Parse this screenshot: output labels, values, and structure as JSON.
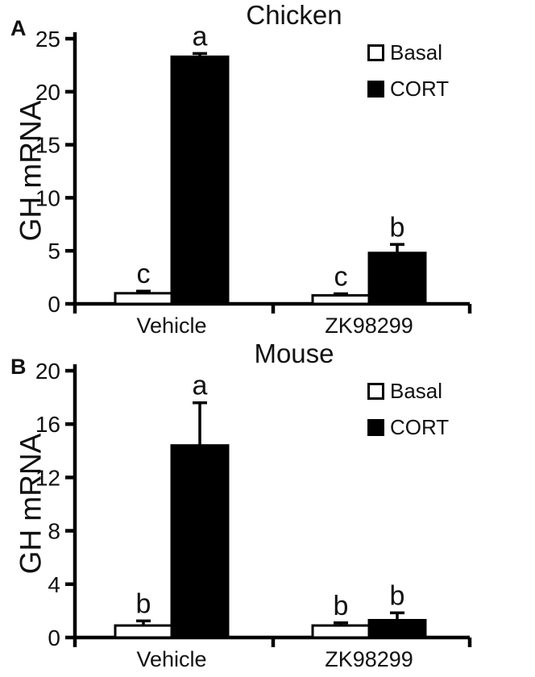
{
  "colors": {
    "foreground": "#000000",
    "background": "#ffffff",
    "basal_fill": "#ffffff",
    "cort_fill": "#000000"
  },
  "chart_data": [
    {
      "type": "bar",
      "panel_label": "A",
      "title": "Chicken",
      "ylabel": "GH mRNA",
      "xlabel": "",
      "categories": [
        "Vehicle",
        "ZK98299"
      ],
      "series": [
        {
          "name": "Basal",
          "fill": "#ffffff",
          "values": [
            1.0,
            0.8
          ],
          "errors": [
            0.2,
            0.15
          ],
          "sig_letters": [
            "c",
            "c"
          ]
        },
        {
          "name": "CORT",
          "fill": "#000000",
          "values": [
            23.3,
            4.8
          ],
          "errors": [
            0.3,
            0.8
          ],
          "sig_letters": [
            "a",
            "b"
          ]
        }
      ],
      "ylim": [
        0,
        25
      ],
      "yticks": [
        0,
        5,
        10,
        15,
        20,
        25
      ],
      "grid": false,
      "legend_position": "top-right",
      "error_bars": "upper"
    },
    {
      "type": "bar",
      "panel_label": "B",
      "title": "Mouse",
      "ylabel": "GH mRNA",
      "xlabel": "",
      "categories": [
        "Vehicle",
        "ZK98299"
      ],
      "series": [
        {
          "name": "Basal",
          "fill": "#ffffff",
          "values": [
            0.9,
            0.9
          ],
          "errors": [
            0.35,
            0.2
          ],
          "sig_letters": [
            "b",
            "b"
          ]
        },
        {
          "name": "CORT",
          "fill": "#000000",
          "values": [
            14.4,
            1.3
          ],
          "errors": [
            3.2,
            0.55
          ],
          "sig_letters": [
            "a",
            "b"
          ]
        }
      ],
      "ylim": [
        0,
        20
      ],
      "yticks": [
        0,
        4,
        8,
        12,
        16,
        20
      ],
      "grid": false,
      "legend_position": "top-right",
      "error_bars": "upper"
    }
  ]
}
